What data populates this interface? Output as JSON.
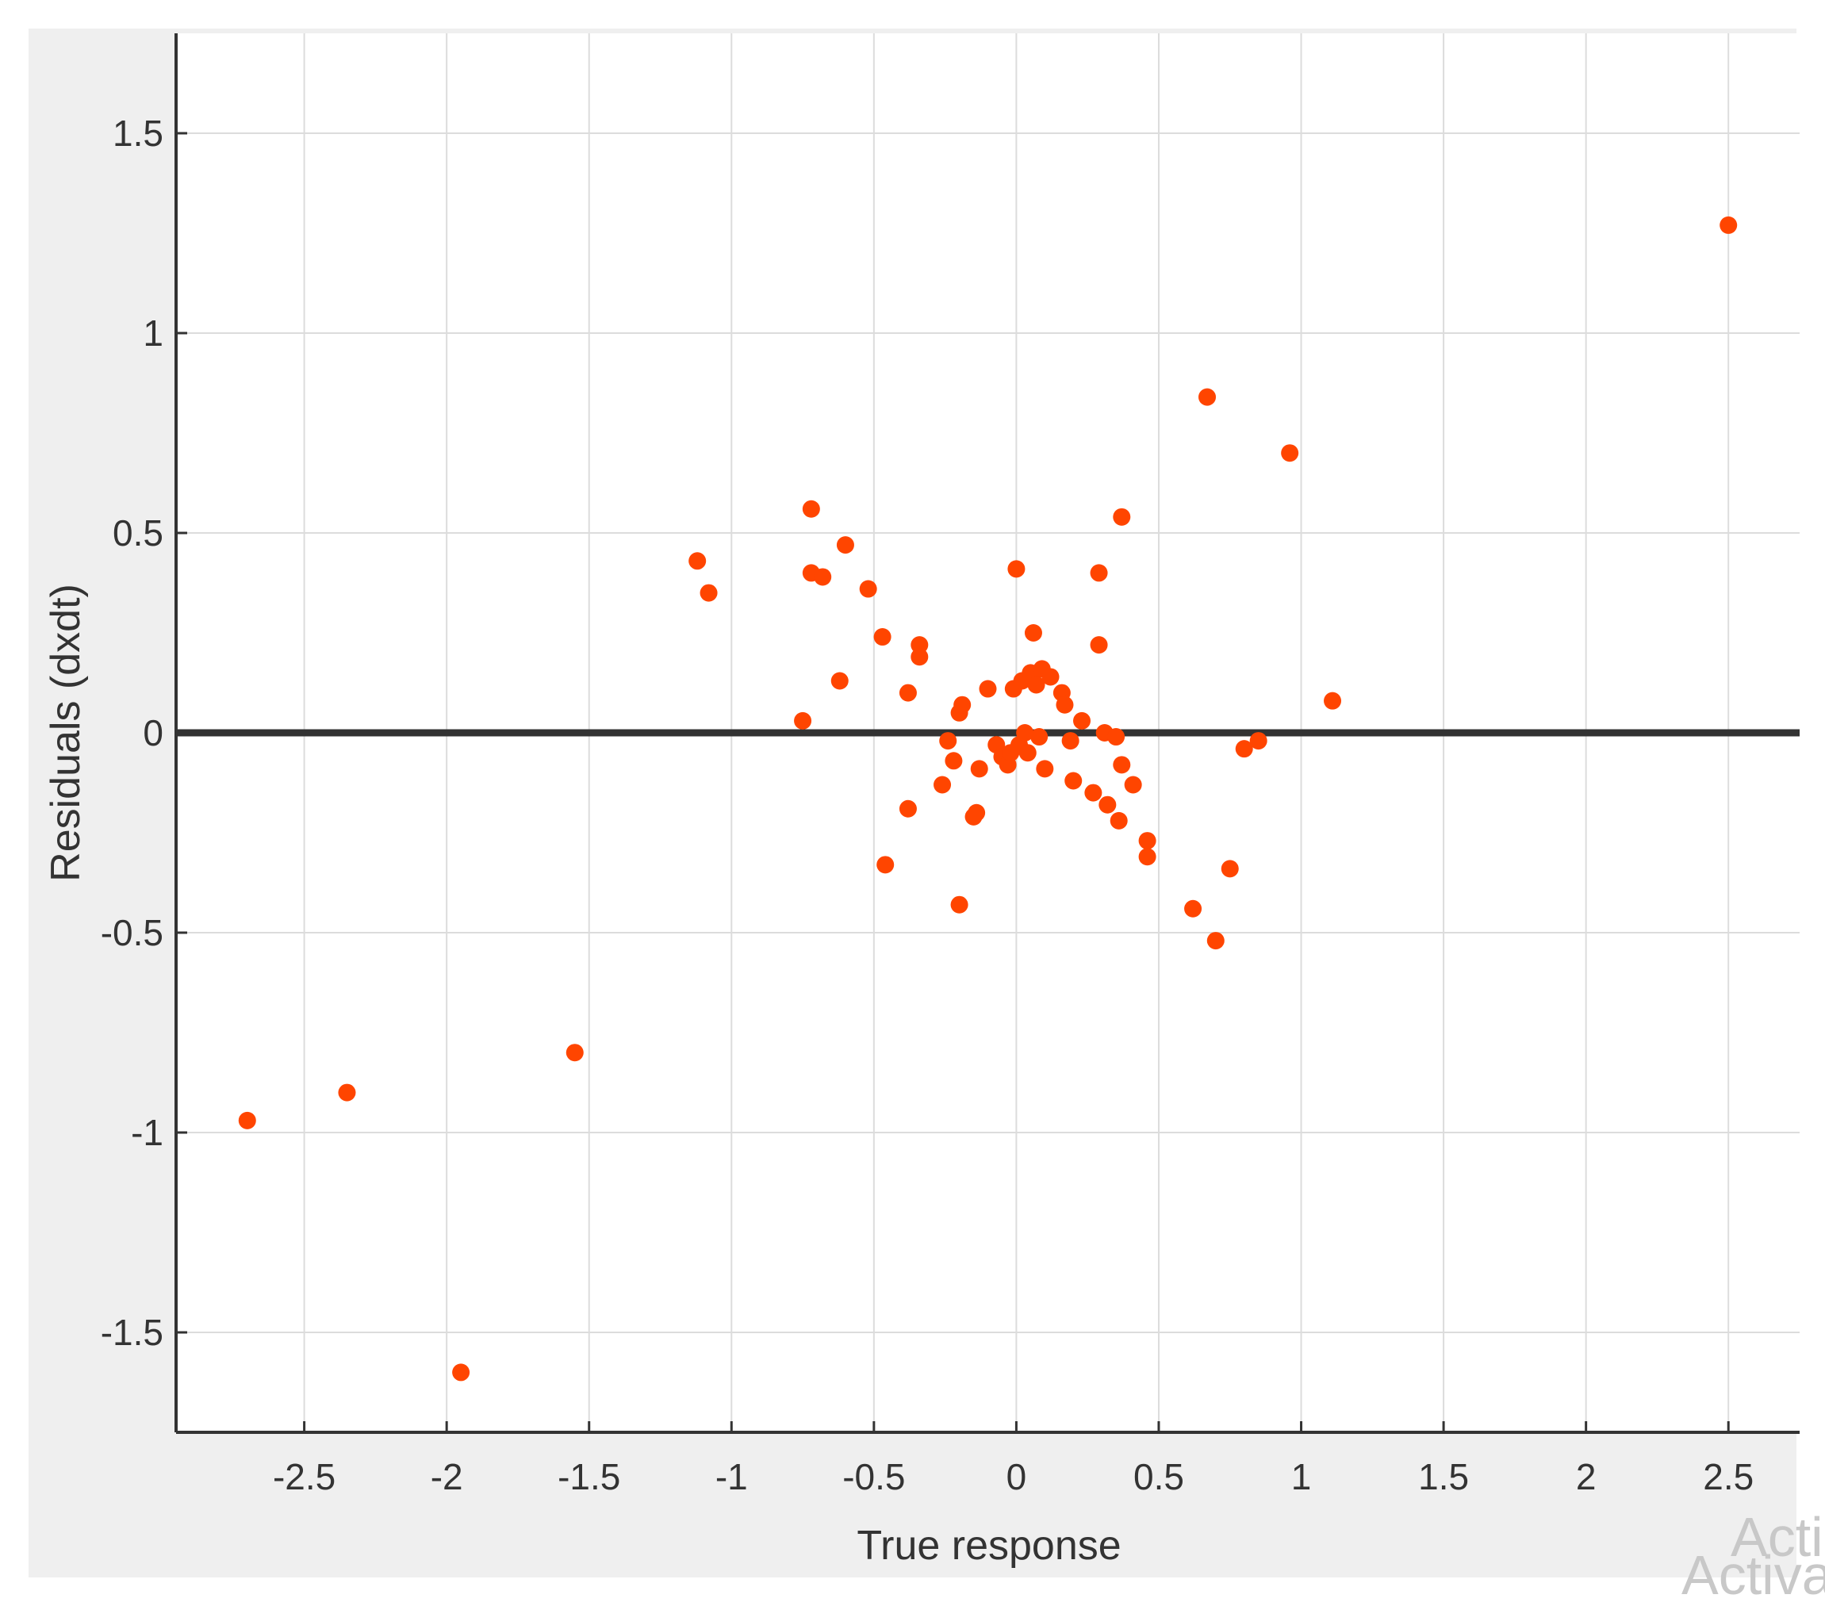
{
  "chart_data": {
    "type": "scatter",
    "title": "",
    "xlabel": "True response",
    "ylabel": "Residuals (dxdt)",
    "xlim": [
      -2.95,
      2.75
    ],
    "ylim": [
      -1.75,
      1.75
    ],
    "xticks": [
      -2.5,
      -2,
      -1.5,
      -1,
      -0.5,
      0,
      0.5,
      1,
      1.5,
      2,
      2.5
    ],
    "xtick_labels": [
      "-2.5",
      "-2",
      "-1.5",
      "-1",
      "-0.5",
      "0",
      "0.5",
      "1",
      "1.5",
      "2",
      "2.5"
    ],
    "yticks": [
      -1.5,
      -1,
      -0.5,
      0,
      0.5,
      1,
      1.5
    ],
    "ytick_labels": [
      "-1.5",
      "-1",
      "-0.5",
      "0",
      "0.5",
      "1",
      "1.5"
    ],
    "grid": true,
    "zero_line": 0,
    "marker_color": "#ff4500",
    "points": [
      {
        "x": -2.7,
        "y": -0.97
      },
      {
        "x": -2.35,
        "y": -0.9
      },
      {
        "x": -1.95,
        "y": -1.6
      },
      {
        "x": -1.55,
        "y": -0.8
      },
      {
        "x": -1.12,
        "y": 0.43
      },
      {
        "x": -1.08,
        "y": 0.35
      },
      {
        "x": -0.75,
        "y": 0.03
      },
      {
        "x": -0.72,
        "y": 0.56
      },
      {
        "x": -0.72,
        "y": 0.4
      },
      {
        "x": -0.68,
        "y": 0.39
      },
      {
        "x": -0.62,
        "y": 0.13
      },
      {
        "x": -0.6,
        "y": 0.47
      },
      {
        "x": -0.52,
        "y": 0.36
      },
      {
        "x": -0.47,
        "y": 0.24
      },
      {
        "x": -0.46,
        "y": -0.33
      },
      {
        "x": -0.38,
        "y": 0.1
      },
      {
        "x": -0.38,
        "y": -0.19
      },
      {
        "x": -0.34,
        "y": 0.22
      },
      {
        "x": -0.34,
        "y": 0.19
      },
      {
        "x": -0.26,
        "y": -0.13
      },
      {
        "x": -0.24,
        "y": -0.02
      },
      {
        "x": -0.22,
        "y": -0.07
      },
      {
        "x": -0.2,
        "y": 0.05
      },
      {
        "x": -0.19,
        "y": 0.07
      },
      {
        "x": -0.2,
        "y": -0.43
      },
      {
        "x": -0.15,
        "y": -0.21
      },
      {
        "x": -0.14,
        "y": -0.2
      },
      {
        "x": -0.13,
        "y": -0.09
      },
      {
        "x": -0.1,
        "y": 0.11
      },
      {
        "x": -0.07,
        "y": -0.03
      },
      {
        "x": -0.05,
        "y": -0.06
      },
      {
        "x": -0.03,
        "y": -0.08
      },
      {
        "x": -0.02,
        "y": -0.05
      },
      {
        "x": -0.01,
        "y": 0.11
      },
      {
        "x": 0.0,
        "y": 0.41
      },
      {
        "x": 0.01,
        "y": -0.03
      },
      {
        "x": 0.02,
        "y": 0.13
      },
      {
        "x": 0.03,
        "y": 0.0
      },
      {
        "x": 0.04,
        "y": -0.05
      },
      {
        "x": 0.05,
        "y": 0.15
      },
      {
        "x": 0.06,
        "y": 0.25
      },
      {
        "x": 0.07,
        "y": 0.12
      },
      {
        "x": 0.08,
        "y": -0.01
      },
      {
        "x": 0.09,
        "y": 0.16
      },
      {
        "x": 0.1,
        "y": -0.09
      },
      {
        "x": 0.12,
        "y": 0.14
      },
      {
        "x": 0.16,
        "y": 0.1
      },
      {
        "x": 0.17,
        "y": 0.07
      },
      {
        "x": 0.19,
        "y": -0.02
      },
      {
        "x": 0.2,
        "y": -0.12
      },
      {
        "x": 0.23,
        "y": 0.03
      },
      {
        "x": 0.27,
        "y": -0.15
      },
      {
        "x": 0.29,
        "y": 0.22
      },
      {
        "x": 0.29,
        "y": 0.4
      },
      {
        "x": 0.31,
        "y": 0.0
      },
      {
        "x": 0.32,
        "y": -0.18
      },
      {
        "x": 0.35,
        "y": -0.01
      },
      {
        "x": 0.36,
        "y": -0.22
      },
      {
        "x": 0.37,
        "y": -0.08
      },
      {
        "x": 0.37,
        "y": 0.54
      },
      {
        "x": 0.41,
        "y": -0.13
      },
      {
        "x": 0.46,
        "y": -0.27
      },
      {
        "x": 0.46,
        "y": -0.31
      },
      {
        "x": 0.62,
        "y": -0.44
      },
      {
        "x": 0.67,
        "y": 0.84
      },
      {
        "x": 0.7,
        "y": -0.52
      },
      {
        "x": 0.75,
        "y": -0.34
      },
      {
        "x": 0.8,
        "y": -0.04
      },
      {
        "x": 0.85,
        "y": -0.02
      },
      {
        "x": 0.96,
        "y": 0.7
      },
      {
        "x": 1.11,
        "y": 0.08
      },
      {
        "x": 2.5,
        "y": 1.27
      }
    ]
  },
  "watermark": {
    "line1": "Acti",
    "line2": "Activat"
  }
}
